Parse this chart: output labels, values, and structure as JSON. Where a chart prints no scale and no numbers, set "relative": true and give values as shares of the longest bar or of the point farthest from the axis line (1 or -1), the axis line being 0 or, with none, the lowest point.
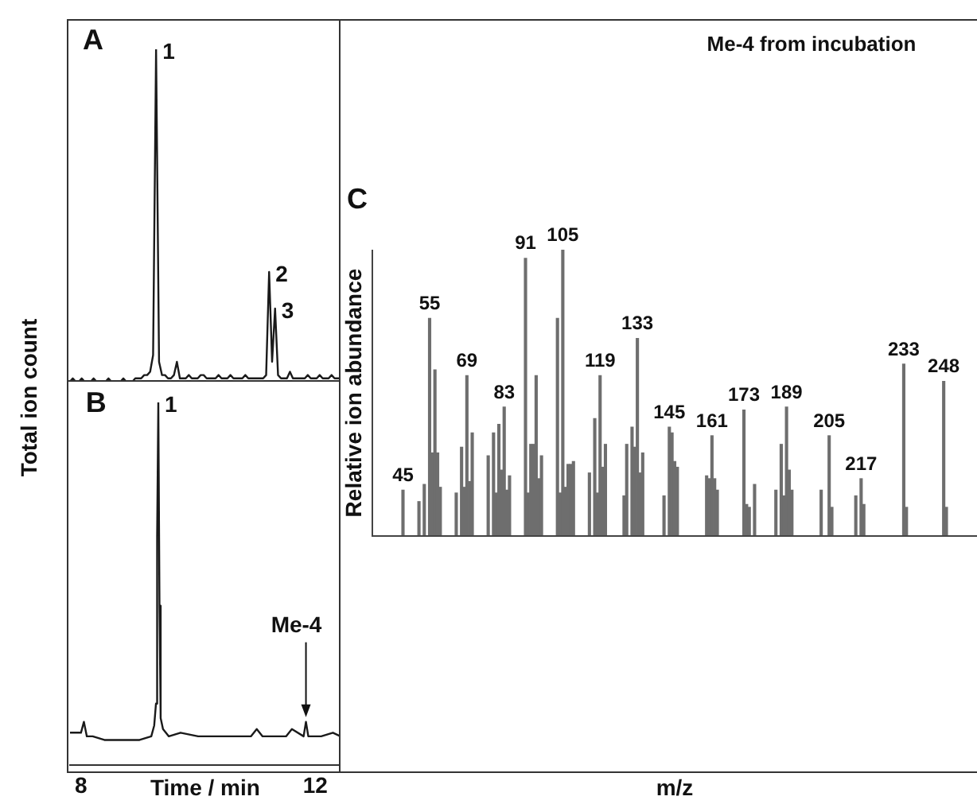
{
  "chart_data": [
    {
      "type": "line",
      "relative": true,
      "ylabel": "Total ion count",
      "tick_labels": false,
      "grid": false,
      "legend": false,
      "marker": "none",
      "line_style": "solid",
      "annotations": [
        "A",
        "1",
        "2",
        "3"
      ],
      "categories": [
        null,
        null,
        null,
        null,
        null,
        null,
        null,
        null,
        null,
        null,
        null,
        null,
        null,
        null,
        null,
        null,
        null,
        null,
        null,
        null,
        null,
        null,
        null,
        null,
        null,
        null,
        null,
        null,
        null,
        null,
        null,
        null,
        null,
        null,
        null,
        null,
        null,
        null,
        null,
        null,
        null,
        null,
        null,
        null,
        null,
        null,
        null,
        null,
        null,
        null,
        null,
        null,
        null,
        null,
        null,
        null,
        null,
        null,
        null,
        null,
        null,
        null,
        null,
        null,
        null,
        null,
        null,
        null,
        null,
        null,
        null,
        null,
        null,
        null,
        null,
        null,
        null,
        null,
        null,
        null,
        null,
        null,
        null,
        null,
        null,
        null,
        null,
        null,
        null,
        null,
        null,
        null,
        null
      ],
      "series": [
        {
          "color": "#1a1a1a",
          "values": [
            0,
            0,
            0.01,
            0,
            0,
            0.01,
            0,
            0,
            0,
            0.01,
            0,
            0,
            0,
            0,
            0.01,
            0,
            0,
            0,
            0,
            0.01,
            0,
            0,
            0,
            0.01,
            0.01,
            0.01,
            0.02,
            0.02,
            0.03,
            0.08,
            1,
            0.06,
            0.02,
            0.02,
            0.01,
            0.01,
            0.02,
            0.06,
            0.01,
            0.01,
            0.01,
            0.02,
            0.01,
            0.01,
            0.01,
            0.02,
            0.02,
            0.01,
            0.01,
            0.01,
            0.01,
            0.02,
            0.01,
            0.01,
            0.01,
            0.02,
            0.01,
            0.01,
            0.01,
            0.01,
            0.02,
            0.01,
            0.01,
            0.01,
            0.01,
            0.01,
            0.01,
            0.02,
            0.33,
            0.06,
            0.22,
            0.02,
            0.01,
            0.01,
            0.01,
            0.03,
            0.01,
            0.01,
            0.01,
            0.01,
            0.01,
            0.02,
            0.01,
            0.01,
            0.01,
            0.02,
            0.01,
            0.01,
            0.01,
            0.02,
            0.01,
            0.01,
            0.01
          ]
        }
      ]
    },
    {
      "type": "line",
      "relative": true,
      "xlabel": "Time / min",
      "xlim": [
        7.81,
        12.43
      ],
      "xticks": [
        8,
        12
      ],
      "tick_labels": "x",
      "grid": false,
      "legend": false,
      "marker": "none",
      "line_style": "solid",
      "annotations": [
        "B",
        {
          "text": "1",
          "x": 9.32,
          "y": 1
        },
        {
          "text": "Me-4",
          "x": 11.84,
          "y": 0.12
        }
      ],
      "series": [
        {
          "color": "#1a1a1a",
          "x": [
            7.81,
            8.0,
            8.05,
            8.1,
            8.2,
            8.4,
            8.7,
            9.0,
            9.2,
            9.25,
            9.28,
            9.3,
            9.32,
            9.34,
            9.36,
            9.4,
            9.5,
            9.7,
            10.0,
            10.3,
            10.6,
            10.9,
            11.0,
            11.1,
            11.2,
            11.5,
            11.6,
            11.8,
            11.84,
            11.88,
            12.1,
            12.3,
            12.43
          ],
          "values": [
            0.09,
            0.09,
            0.12,
            0.08,
            0.08,
            0.07,
            0.07,
            0.07,
            0.08,
            0.11,
            0.17,
            0.63,
            1,
            0.44,
            0.13,
            0.1,
            0.08,
            0.09,
            0.08,
            0.08,
            0.08,
            0.08,
            0.1,
            0.08,
            0.08,
            0.08,
            0.1,
            0.08,
            0.12,
            0.08,
            0.08,
            0.09,
            0.08
          ]
        }
      ]
    },
    {
      "type": "bar",
      "relative": true,
      "title": "Me-4 from incubation",
      "xlabel": "m/z",
      "ylabel": "Relative ion abundance",
      "tick_labels": false,
      "grid": false,
      "legend": false,
      "annotations": [
        "C"
      ],
      "categories": [
        null,
        null,
        null,
        null,
        null,
        null,
        null,
        null,
        null,
        null,
        null,
        "45",
        null,
        null,
        null,
        null,
        null,
        null,
        null,
        null,
        null,
        "55",
        null,
        null,
        null,
        null,
        null,
        null,
        null,
        null,
        null,
        null,
        null,
        null,
        null,
        "69",
        null,
        null,
        null,
        null,
        null,
        null,
        null,
        null,
        null,
        null,
        null,
        null,
        null,
        "83",
        null,
        null,
        null,
        null,
        null,
        null,
        null,
        "91",
        null,
        null,
        null,
        null,
        null,
        null,
        null,
        null,
        null,
        null,
        null,
        null,
        null,
        "105",
        null,
        null,
        null,
        null,
        null,
        null,
        null,
        null,
        null,
        null,
        null,
        null,
        null,
        "119",
        null,
        null,
        null,
        null,
        null,
        null,
        null,
        null,
        null,
        null,
        null,
        null,
        null,
        "133",
        null,
        null,
        null,
        null,
        null,
        null,
        null,
        null,
        null,
        null,
        null,
        "145",
        null,
        null,
        null,
        null,
        null,
        null,
        null,
        null,
        null,
        null,
        null,
        null,
        null,
        null,
        null,
        "161",
        null,
        null,
        null,
        null,
        null,
        null,
        null,
        null,
        null,
        null,
        null,
        "173",
        null,
        null,
        null,
        null,
        null,
        null,
        null,
        null,
        null,
        null,
        null,
        null,
        null,
        null,
        null,
        "189",
        null,
        null,
        null,
        null,
        null,
        null,
        null,
        null,
        null,
        null,
        null,
        null,
        null,
        null,
        null,
        "205",
        null,
        null,
        null,
        null,
        null,
        null,
        null,
        null,
        null,
        null,
        null,
        "217",
        null,
        null,
        null,
        null,
        null,
        null,
        null,
        null,
        null,
        null,
        null,
        null,
        null,
        null,
        null,
        "233",
        null,
        null,
        null,
        null,
        null,
        null,
        null,
        null,
        null,
        null,
        null,
        null,
        null,
        null,
        "248",
        null,
        null,
        null,
        null,
        null,
        null,
        null,
        null,
        null,
        null,
        null,
        null
      ],
      "series": [
        {
          "color": "#6e6e6e",
          "values": [
            null,
            null,
            null,
            null,
            null,
            null,
            null,
            null,
            null,
            null,
            null,
            0.16,
            null,
            null,
            null,
            null,
            null,
            0.12,
            null,
            0.18,
            null,
            0.76,
            0.29,
            0.58,
            0.29,
            0.17,
            null,
            null,
            null,
            null,
            null,
            0.15,
            null,
            0.31,
            0.17,
            0.56,
            0.19,
            0.36,
            null,
            null,
            null,
            null,
            null,
            0.28,
            null,
            0.36,
            0.15,
            0.39,
            0.23,
            0.45,
            0.16,
            0.21,
            null,
            null,
            null,
            null,
            null,
            0.97,
            0.15,
            0.32,
            0.32,
            0.56,
            0.2,
            0.28,
            null,
            null,
            null,
            null,
            null,
            0.76,
            0.15,
            1,
            0.17,
            0.25,
            0.25,
            0.26,
            null,
            null,
            null,
            null,
            null,
            0.22,
            null,
            0.41,
            0.15,
            0.56,
            0.24,
            0.32,
            null,
            null,
            null,
            null,
            null,
            null,
            0.14,
            0.32,
            null,
            0.38,
            0.31,
            0.69,
            0.22,
            0.29,
            null,
            null,
            null,
            null,
            null,
            null,
            null,
            0.14,
            null,
            0.38,
            0.36,
            0.26,
            0.24,
            null,
            null,
            null,
            null,
            null,
            null,
            null,
            null,
            null,
            null,
            0.21,
            0.2,
            0.35,
            0.2,
            0.16,
            null,
            null,
            null,
            null,
            null,
            null,
            null,
            null,
            null,
            0.44,
            0.11,
            0.1,
            null,
            0.18,
            null,
            null,
            null,
            null,
            null,
            null,
            null,
            0.16,
            null,
            0.32,
            0.14,
            0.45,
            0.23,
            0.16,
            null,
            null,
            null,
            null,
            null,
            null,
            null,
            null,
            null,
            null,
            0.16,
            null,
            null,
            0.35,
            0.1,
            null,
            null,
            null,
            null,
            null,
            null,
            null,
            null,
            0.14,
            null,
            0.2,
            0.11,
            null,
            null,
            null,
            null,
            null,
            null,
            null,
            null,
            null,
            null,
            null,
            null,
            null,
            null,
            0.6,
            0.1,
            null,
            null,
            null,
            null,
            null,
            null,
            null,
            null,
            null,
            null,
            null,
            null,
            null,
            0.54,
            0.1,
            null,
            null,
            null,
            null,
            null,
            null,
            null,
            null,
            null,
            null,
            null
          ]
        }
      ]
    }
  ]
}
